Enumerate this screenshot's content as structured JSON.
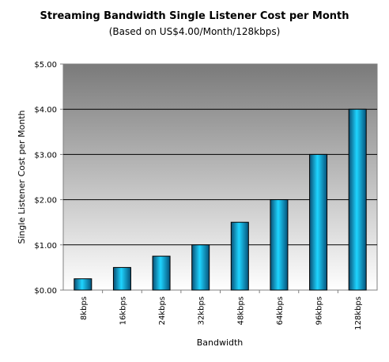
{
  "chart_data": {
    "type": "bar",
    "title": "Streaming Bandwidth Single Listener Cost per Month",
    "subtitle": "(Based on US$4.00/Month/128kbps)",
    "xlabel": "Bandwidth",
    "ylabel": "Single Listener Cost per Month",
    "categories": [
      "8kbps",
      "16kbps",
      "24kbps",
      "32kbps",
      "48kbps",
      "64kbps",
      "96kbps",
      "128kbps"
    ],
    "values": [
      0.25,
      0.5,
      0.75,
      1.0,
      1.5,
      2.0,
      3.0,
      4.0
    ],
    "ylim": [
      0,
      5
    ],
    "yticks": [
      "$0.00",
      "$1.00",
      "$2.00",
      "$3.00",
      "$4.00",
      "$5.00"
    ],
    "grid": true,
    "bar_color": "#00b0e8"
  }
}
